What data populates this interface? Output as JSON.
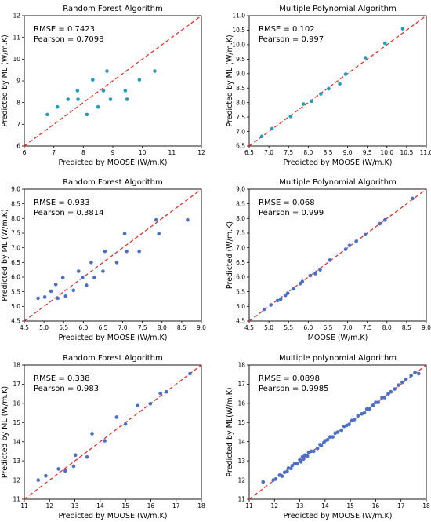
{
  "chart_data": [
    {
      "type": "scatter",
      "title": "Random Forest Algorithm",
      "xlabel": "Predicted by MOOSE (W/m.K)",
      "ylabel": "Predicted by ML (W/m.K)",
      "xlim": [
        6,
        12
      ],
      "ylim": [
        6,
        12
      ],
      "xticks": [
        "6",
        "7",
        "8",
        "9",
        "10",
        "11",
        "12"
      ],
      "yticks": [
        "6",
        "7",
        "8",
        "9",
        "10",
        "11",
        "12"
      ],
      "annotations": [
        "RMSE = 0.7423",
        "Pearson = 0.7098"
      ],
      "point_color": "#1f9fbf",
      "x": [
        6.78,
        7.12,
        7.48,
        7.8,
        7.82,
        8.12,
        8.32,
        8.5,
        8.68,
        8.8,
        8.92,
        9.42,
        9.48,
        9.9,
        10.42
      ],
      "y": [
        7.45,
        7.8,
        8.15,
        8.55,
        8.15,
        7.45,
        9.05,
        7.8,
        8.55,
        9.45,
        8.15,
        8.55,
        8.15,
        9.05,
        9.45
      ]
    },
    {
      "type": "scatter",
      "title": "Multiple Polynomial Algorithm",
      "xlabel": "Predicted by MOOSE (W/m.K)",
      "ylabel": "Predicted by ML (W/m.K)",
      "xlim": [
        6.5,
        11
      ],
      "ylim": [
        6.5,
        11
      ],
      "xticks": [
        "6.5",
        "7.0",
        "7.5",
        "8.0",
        "8.5",
        "9.0",
        "9.5",
        "10.0",
        "10.5",
        "11.0"
      ],
      "yticks": [
        "6.5",
        "7.0",
        "7.5",
        "8.0",
        "8.5",
        "9.0",
        "9.5",
        "10.0",
        "10.5",
        "11.0"
      ],
      "annotations": [
        "RMSE = 0.102",
        "Pearson = 0.997"
      ],
      "point_color": "#1f9fbf",
      "x": [
        6.82,
        7.08,
        7.55,
        7.88,
        8.08,
        8.32,
        8.52,
        8.8,
        8.95,
        9.45,
        9.95,
        10.4
      ],
      "y": [
        6.83,
        7.1,
        7.52,
        7.95,
        8.05,
        8.3,
        8.48,
        8.65,
        8.98,
        9.55,
        10.05,
        10.55
      ]
    },
    {
      "type": "scatter",
      "title": "Random Forest Algorithm",
      "xlabel": "Predicted by MOOSE (W/m.K)",
      "ylabel": "Predicted by ML (W/m.K)",
      "xlim": [
        4.5,
        9.0
      ],
      "ylim": [
        4.5,
        9.0
      ],
      "xticks": [
        "4.5",
        "5.0",
        "5.5",
        "6.0",
        "6.5",
        "7.0",
        "7.5",
        "8.0",
        "8.5",
        "9.0"
      ],
      "yticks": [
        "4.5",
        "5.0",
        "5.5",
        "6.0",
        "6.5",
        "7.0",
        "7.5",
        "8.0",
        "8.5",
        "9.0"
      ],
      "annotations": [
        "RMSE = 0.933",
        "Pearson = 0.3814"
      ],
      "point_color": "#4a6fc7",
      "x": [
        4.85,
        5.02,
        5.18,
        5.3,
        5.35,
        5.48,
        5.55,
        5.75,
        5.88,
        5.98,
        6.08,
        6.2,
        6.28,
        6.5,
        6.55,
        6.85,
        7.05,
        7.1,
        7.42,
        7.85,
        7.92,
        8.65
      ],
      "y": [
        5.28,
        5.32,
        5.52,
        5.75,
        5.28,
        5.98,
        5.35,
        5.55,
        6.2,
        5.98,
        5.72,
        6.5,
        5.98,
        6.2,
        6.88,
        6.5,
        7.48,
        6.88,
        6.88,
        7.95,
        7.48,
        7.95
      ]
    },
    {
      "type": "scatter",
      "title": "Multiple Polynomial Algorithm",
      "xlabel": "MOOSE (W/m.K)",
      "ylabel": "Predicted (W/m.K)",
      "xlim": [
        4.5,
        9.0
      ],
      "ylim": [
        4.5,
        9.0
      ],
      "xticks": [
        "4.5",
        "5.0",
        "5.5",
        "6.0",
        "6.5",
        "7.0",
        "7.5",
        "8.0",
        "8.5",
        "9.0"
      ],
      "yticks": [
        "4.5",
        "5.0",
        "5.5",
        "6.0",
        "6.5",
        "7.0",
        "7.5",
        "8.0",
        "8.5",
        "9.0"
      ],
      "annotations": [
        "RMSE = 0.068",
        "Pearson = 0.999"
      ],
      "point_color": "#4a6fc7",
      "x": [
        4.88,
        5.05,
        5.22,
        5.3,
        5.42,
        5.48,
        5.62,
        5.8,
        5.85,
        6.05,
        6.18,
        6.3,
        6.55,
        6.95,
        7.05,
        7.22,
        7.45,
        7.82,
        7.95,
        8.65
      ],
      "y": [
        4.9,
        5.05,
        5.2,
        5.25,
        5.38,
        5.45,
        5.6,
        5.78,
        5.85,
        6.05,
        6.12,
        6.25,
        6.58,
        6.95,
        7.08,
        7.22,
        7.45,
        7.82,
        7.95,
        8.68
      ]
    },
    {
      "type": "scatter",
      "title": "Random Forest Algorithm",
      "xlabel": "Predicted by MOOSE (W/m.K)",
      "ylabel": "Predicted by ML (W/m.K)",
      "xlim": [
        11,
        18
      ],
      "ylim": [
        11,
        18
      ],
      "xticks": [
        "11",
        "12",
        "13",
        "14",
        "15",
        "16",
        "17",
        "18"
      ],
      "yticks": [
        "11",
        "12",
        "13",
        "14",
        "15",
        "16",
        "17",
        "18"
      ],
      "annotations": [
        "RMSE = 0.338",
        "Pearson = 0.983"
      ],
      "point_color": "#4a6fc7",
      "x": [
        11.55,
        11.85,
        12.35,
        12.62,
        12.95,
        13.02,
        13.48,
        13.68,
        14.18,
        14.65,
        15.0,
        15.48,
        15.98,
        16.38,
        16.62,
        17.55
      ],
      "y": [
        12.0,
        12.22,
        12.58,
        12.48,
        12.72,
        13.3,
        13.2,
        14.42,
        14.05,
        15.28,
        14.92,
        15.88,
        15.98,
        16.52,
        16.6,
        17.55
      ]
    },
    {
      "type": "scatter",
      "title": "Multiple polynomial Algorithm",
      "xlabel": "Predicted by MOOSE (W/m.K)",
      "ylabel": "Predicted by ML(W/m.K)",
      "xlim": [
        11,
        18
      ],
      "ylim": [
        11,
        18
      ],
      "xticks": [
        "11",
        "12",
        "13",
        "14",
        "15",
        "16",
        "17",
        "18"
      ],
      "yticks": [
        "11",
        "12",
        "13",
        "14",
        "15",
        "16",
        "17",
        "18"
      ],
      "annotations": [
        "RMSE = 0.0898",
        "Pearson = 0.9985"
      ],
      "point_color": "#4a6fc7",
      "x": [
        11.55,
        11.95,
        12.05,
        12.2,
        12.3,
        12.4,
        12.5,
        12.55,
        12.65,
        12.7,
        12.8,
        12.9,
        13.0,
        13.05,
        13.1,
        13.15,
        13.2,
        13.3,
        13.35,
        13.45,
        13.55,
        13.7,
        13.8,
        13.85,
        13.95,
        14.0,
        14.1,
        14.2,
        14.3,
        14.4,
        14.5,
        14.65,
        14.75,
        14.85,
        14.95,
        15.05,
        15.15,
        15.3,
        15.45,
        15.55,
        15.65,
        15.75,
        15.9,
        16.0,
        16.1,
        16.25,
        16.35,
        16.5,
        16.6,
        16.75,
        16.9,
        17.05,
        17.2,
        17.4,
        17.55,
        17.7
      ],
      "y": [
        11.9,
        12.0,
        12.05,
        12.25,
        12.2,
        12.4,
        12.45,
        12.62,
        12.6,
        12.75,
        12.85,
        12.85,
        13.05,
        12.95,
        13.2,
        13.1,
        13.3,
        13.25,
        13.45,
        13.5,
        13.5,
        13.65,
        13.85,
        13.8,
        13.95,
        14.05,
        14.1,
        14.25,
        14.25,
        14.45,
        14.5,
        14.6,
        14.8,
        14.85,
        14.9,
        15.1,
        15.15,
        15.35,
        15.45,
        15.5,
        15.7,
        15.7,
        15.9,
        16.05,
        16.05,
        16.3,
        16.3,
        16.5,
        16.6,
        16.75,
        16.95,
        17.1,
        17.25,
        17.45,
        17.6,
        17.55
      ]
    }
  ]
}
